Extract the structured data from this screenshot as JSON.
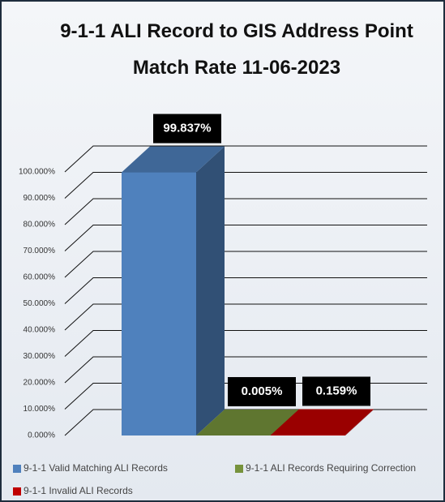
{
  "chart_data": {
    "type": "bar3d",
    "title": "9-1-1 ALI Record to GIS Address Point Match Rate 11-06-2023",
    "series": [
      {
        "name": "9-1-1 Valid Matching ALI Records",
        "color": "#4f81bd",
        "values": [
          99.837
        ],
        "value_labels": [
          "99.837%"
        ]
      },
      {
        "name": "9-1-1 ALI Records Requiring Correction",
        "color": "#77933c",
        "values": [
          0.005
        ],
        "value_labels": [
          "0.005%"
        ]
      },
      {
        "name": "9-1-1 Invalid ALI Records",
        "color": "#c00000",
        "values": [
          0.159
        ],
        "value_labels": [
          "0.159%"
        ]
      }
    ],
    "ylim": [
      0,
      100
    ],
    "yticks": [
      {
        "value": 0,
        "label": "0.000%"
      },
      {
        "value": 10,
        "label": "10.000%"
      },
      {
        "value": 20,
        "label": "20.000%"
      },
      {
        "value": 30,
        "label": "30.000%"
      },
      {
        "value": 40,
        "label": "40.000%"
      },
      {
        "value": 50,
        "label": "50.000%"
      },
      {
        "value": 60,
        "label": "60.000%"
      },
      {
        "value": 70,
        "label": "70.000%"
      },
      {
        "value": 80,
        "label": "80.000%"
      },
      {
        "value": 90,
        "label": "90.000%"
      },
      {
        "value": 100,
        "label": "100.000%"
      }
    ],
    "grid": true,
    "legend": "bottom"
  }
}
